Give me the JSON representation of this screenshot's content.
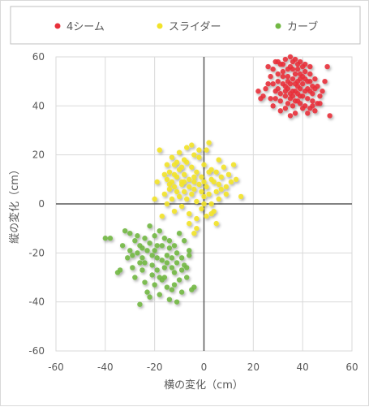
{
  "chart_data": {
    "type": "scatter",
    "title": "",
    "xlabel": "横の変化（cm）",
    "ylabel": "縦の変化（cm）",
    "xlim": [
      -60,
      60
    ],
    "ylim": [
      -60,
      60
    ],
    "xticks": [
      -60,
      -40,
      -20,
      0,
      20,
      40,
      60
    ],
    "yticks": [
      -60,
      -40,
      -20,
      0,
      20,
      40,
      60
    ],
    "grid": true,
    "legend_position": "top",
    "series": [
      {
        "name": "4シーム",
        "color": "#e8303a",
        "points": [
          [
            26,
            56
          ],
          [
            27,
            52
          ],
          [
            28,
            55
          ],
          [
            29,
            58
          ],
          [
            30,
            50
          ],
          [
            31,
            57
          ],
          [
            32,
            54
          ],
          [
            33,
            59
          ],
          [
            34,
            52
          ],
          [
            35,
            56
          ],
          [
            36,
            58
          ],
          [
            37,
            53
          ],
          [
            38,
            55
          ],
          [
            39,
            51
          ],
          [
            40,
            56
          ],
          [
            41,
            54
          ],
          [
            42,
            50
          ],
          [
            43,
            53
          ],
          [
            44,
            48
          ],
          [
            45,
            51
          ],
          [
            30,
            47
          ],
          [
            31,
            45
          ],
          [
            32,
            49
          ],
          [
            33,
            44
          ],
          [
            34,
            47
          ],
          [
            35,
            43
          ],
          [
            36,
            46
          ],
          [
            37,
            42
          ],
          [
            38,
            45
          ],
          [
            39,
            41
          ],
          [
            40,
            44
          ],
          [
            41,
            40
          ],
          [
            42,
            43
          ],
          [
            43,
            39
          ],
          [
            44,
            42
          ],
          [
            45,
            38
          ],
          [
            46,
            41
          ],
          [
            47,
            44
          ],
          [
            48,
            46
          ],
          [
            49,
            50
          ],
          [
            50,
            56
          ],
          [
            51,
            36
          ],
          [
            25,
            47
          ],
          [
            24,
            44
          ],
          [
            27,
            43
          ],
          [
            28,
            40
          ],
          [
            29,
            46
          ],
          [
            31,
            38
          ],
          [
            33,
            39
          ],
          [
            35,
            36
          ],
          [
            36,
            40
          ],
          [
            37,
            37
          ],
          [
            38,
            48
          ],
          [
            39,
            47
          ],
          [
            40,
            49
          ],
          [
            32,
            52
          ],
          [
            34,
            50
          ],
          [
            36,
            51
          ],
          [
            38,
            50
          ],
          [
            40,
            52
          ],
          [
            42,
            47
          ],
          [
            44,
            45
          ],
          [
            46,
            48
          ],
          [
            22,
            46
          ],
          [
            23,
            43
          ],
          [
            28,
            49
          ],
          [
            30,
            53
          ],
          [
            33,
            48
          ],
          [
            35,
            49
          ],
          [
            37,
            46
          ],
          [
            39,
            44
          ],
          [
            41,
            46
          ],
          [
            43,
            46
          ],
          [
            45,
            47
          ],
          [
            26,
            49
          ],
          [
            29,
            43
          ],
          [
            31,
            42
          ],
          [
            34,
            41
          ],
          [
            36,
            44
          ],
          [
            38,
            42
          ],
          [
            40,
            39
          ],
          [
            42,
            37
          ],
          [
            44,
            40
          ],
          [
            47,
            41
          ],
          [
            30,
            58
          ],
          [
            32,
            57
          ],
          [
            35,
            60
          ],
          [
            37,
            59
          ],
          [
            39,
            58
          ],
          [
            41,
            57
          ],
          [
            43,
            56
          ],
          [
            33,
            46
          ],
          [
            35,
            45
          ],
          [
            37,
            49
          ],
          [
            39,
            53
          ],
          [
            41,
            51
          ],
          [
            43,
            50
          ],
          [
            36,
            55
          ],
          [
            34,
            55
          ],
          [
            38,
            57
          ]
        ]
      },
      {
        "name": "スライダー",
        "color": "#f2e32a",
        "points": [
          [
            -15,
            10
          ],
          [
            -14,
            13
          ],
          [
            -13,
            9
          ],
          [
            -12,
            16
          ],
          [
            -11,
            11
          ],
          [
            -10,
            14
          ],
          [
            -9,
            8
          ],
          [
            -8,
            12
          ],
          [
            -7,
            17
          ],
          [
            -6,
            10
          ],
          [
            -5,
            15
          ],
          [
            -4,
            9
          ],
          [
            -3,
            13
          ],
          [
            -2,
            19
          ],
          [
            -1,
            11
          ],
          [
            0,
            16
          ],
          [
            1,
            22
          ],
          [
            2,
            25
          ],
          [
            3,
            14
          ],
          [
            4,
            9
          ],
          [
            5,
            13
          ],
          [
            6,
            18
          ],
          [
            7,
            11
          ],
          [
            8,
            15
          ],
          [
            9,
            7
          ],
          [
            10,
            12
          ],
          [
            11,
            9
          ],
          [
            12,
            16
          ],
          [
            13,
            10
          ],
          [
            15,
            3
          ],
          [
            -16,
            4
          ],
          [
            -15,
            0
          ],
          [
            -14,
            6
          ],
          [
            -13,
            2
          ],
          [
            -12,
            7
          ],
          [
            -11,
            5
          ],
          [
            -10,
            3
          ],
          [
            -9,
            9
          ],
          [
            -8,
            5
          ],
          [
            -7,
            2
          ],
          [
            -6,
            7
          ],
          [
            -5,
            4
          ],
          [
            -4,
            6
          ],
          [
            -3,
            1
          ],
          [
            -2,
            8
          ],
          [
            -1,
            5
          ],
          [
            0,
            3
          ],
          [
            1,
            7
          ],
          [
            2,
            4
          ],
          [
            3,
            0
          ],
          [
            4,
            -3
          ],
          [
            5,
            5
          ],
          [
            6,
            2
          ],
          [
            7,
            6
          ],
          [
            -17,
            -5
          ],
          [
            -12,
            -3
          ],
          [
            -9,
            -1
          ],
          [
            -6,
            -4
          ],
          [
            -3,
            -6
          ],
          [
            -1,
            -2
          ],
          [
            1,
            -5
          ],
          [
            3,
            -4
          ],
          [
            5,
            -8
          ],
          [
            -18,
            22
          ],
          [
            -13,
            19
          ],
          [
            -10,
            21
          ],
          [
            -7,
            23
          ],
          [
            -4,
            20
          ],
          [
            -8,
            18
          ],
          [
            -11,
            17
          ],
          [
            -5,
            24
          ],
          [
            -2,
            22
          ],
          [
            -6,
            -8
          ],
          [
            -4,
            -12
          ],
          [
            -3,
            -10
          ],
          [
            -9,
            15
          ],
          [
            -14,
            8
          ],
          [
            -16,
            12
          ],
          [
            -12,
            12
          ],
          [
            -8,
            9
          ],
          [
            -4,
            11
          ],
          [
            0,
            9
          ],
          [
            3,
            10
          ],
          [
            6,
            8
          ],
          [
            9,
            4
          ],
          [
            -19,
            9
          ],
          [
            -20,
            2
          ],
          [
            -15,
            16
          ],
          [
            2,
            13
          ],
          [
            0,
            0
          ]
        ]
      },
      {
        "name": "カーブ",
        "color": "#72b844",
        "points": [
          [
            -40,
            -14
          ],
          [
            -38,
            -14
          ],
          [
            -35,
            -28
          ],
          [
            -34,
            -27
          ],
          [
            -33,
            -17
          ],
          [
            -32,
            -11
          ],
          [
            -31,
            -22
          ],
          [
            -30,
            -19
          ],
          [
            -29,
            -26
          ],
          [
            -28,
            -30
          ],
          [
            -27,
            -13
          ],
          [
            -26,
            -41
          ],
          [
            -25,
            -18
          ],
          [
            -24,
            -24
          ],
          [
            -23,
            -36
          ],
          [
            -22,
            -9
          ],
          [
            -21,
            -29
          ],
          [
            -20,
            -13
          ],
          [
            -19,
            -22
          ],
          [
            -18,
            -30
          ],
          [
            -17,
            -17
          ],
          [
            -16,
            -26
          ],
          [
            -15,
            -34
          ],
          [
            -14,
            -15
          ],
          [
            -13,
            -22
          ],
          [
            -12,
            -28
          ],
          [
            -11,
            -20
          ],
          [
            -10,
            -31
          ],
          [
            -9,
            -36
          ],
          [
            -8,
            -25
          ],
          [
            -7,
            -30
          ],
          [
            -6,
            -19
          ],
          [
            -5,
            -35
          ],
          [
            -4,
            -34
          ],
          [
            -27,
            -20
          ],
          [
            -25,
            -22
          ],
          [
            -23,
            -19
          ],
          [
            -21,
            -25
          ],
          [
            -19,
            -27
          ],
          [
            -17,
            -23
          ],
          [
            -15,
            -21
          ],
          [
            -13,
            -26
          ],
          [
            -11,
            -24
          ],
          [
            -9,
            -22
          ],
          [
            -30,
            -12
          ],
          [
            -28,
            -15
          ],
          [
            -26,
            -17
          ],
          [
            -24,
            -14
          ],
          [
            -22,
            -16
          ],
          [
            -20,
            -19
          ],
          [
            -18,
            -11
          ],
          [
            -16,
            -14
          ],
          [
            -14,
            -18
          ],
          [
            -12,
            -17
          ],
          [
            -10,
            -12
          ],
          [
            -8,
            -15
          ],
          [
            -6,
            -21
          ],
          [
            -24,
            -32
          ],
          [
            -22,
            -38
          ],
          [
            -20,
            -33
          ],
          [
            -18,
            -37
          ],
          [
            -16,
            -30
          ],
          [
            -14,
            -39
          ],
          [
            -12,
            -33
          ],
          [
            -29,
            -21
          ],
          [
            -25,
            -27
          ],
          [
            -21,
            -21
          ],
          [
            -17,
            -31
          ],
          [
            -13,
            -35
          ],
          [
            -11,
            -40
          ],
          [
            -9,
            -27
          ],
          [
            -7,
            -26
          ],
          [
            -26,
            -24
          ],
          [
            -19,
            -17
          ],
          [
            -15,
            -24
          ]
        ]
      }
    ]
  }
}
